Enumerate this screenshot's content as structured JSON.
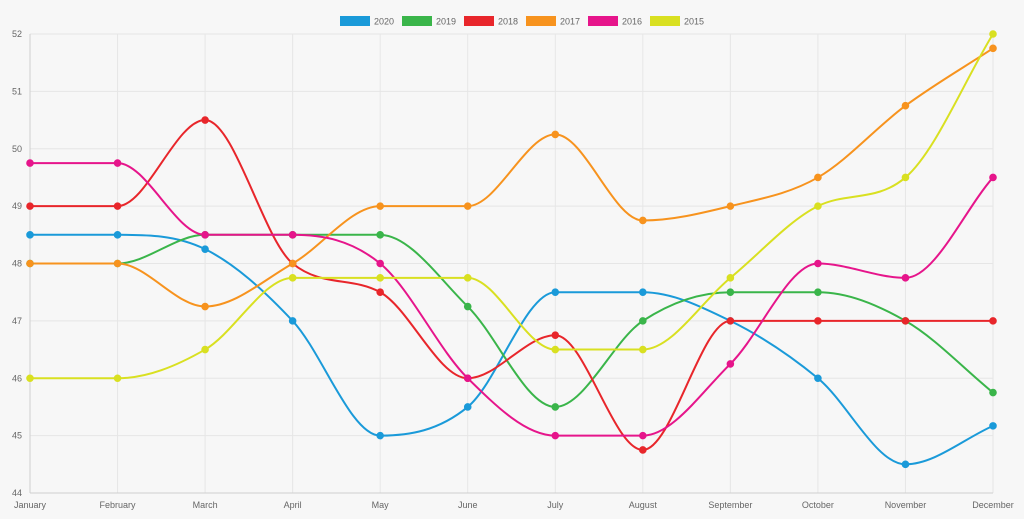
{
  "chart_data": {
    "type": "line",
    "title": "",
    "xlabel": "",
    "ylabel": "",
    "categories": [
      "January",
      "February",
      "March",
      "April",
      "May",
      "June",
      "July",
      "August",
      "September",
      "October",
      "November",
      "December"
    ],
    "ylim": [
      44,
      52
    ],
    "yticks": [
      "44",
      "45",
      "46",
      "47",
      "48",
      "49",
      "50",
      "51",
      "52"
    ],
    "grid": true,
    "legend_position": "top-center",
    "series": [
      {
        "name": "2020",
        "color": "#1a9ad9",
        "values": [
          48.5,
          48.5,
          48.25,
          47,
          45,
          45.5,
          47.5,
          47.5,
          47,
          46,
          44.5,
          45.17
        ]
      },
      {
        "name": "2019",
        "color": "#3ab54a",
        "values": [
          48,
          48,
          48.5,
          48.5,
          48.5,
          47.25,
          45.5,
          47,
          47.5,
          47.5,
          47,
          45.75
        ]
      },
      {
        "name": "2018",
        "color": "#e8262b",
        "values": [
          49,
          49,
          50.5,
          48,
          47.5,
          46,
          46.75,
          44.75,
          47,
          47,
          47,
          47
        ]
      },
      {
        "name": "2017",
        "color": "#f7931e",
        "values": [
          48,
          48,
          47.25,
          48,
          49,
          49,
          50.25,
          48.75,
          49,
          49.5,
          50.75,
          51.75
        ]
      },
      {
        "name": "2016",
        "color": "#e6158b",
        "values": [
          49.75,
          49.75,
          48.5,
          48.5,
          48,
          46,
          45,
          45,
          46.25,
          48,
          47.75,
          49.5
        ]
      },
      {
        "name": "2015",
        "color": "#d9e021",
        "values": [
          46,
          46,
          46.5,
          47.75,
          47.75,
          47.75,
          46.5,
          46.5,
          47.75,
          49,
          49.5,
          52
        ]
      }
    ]
  }
}
